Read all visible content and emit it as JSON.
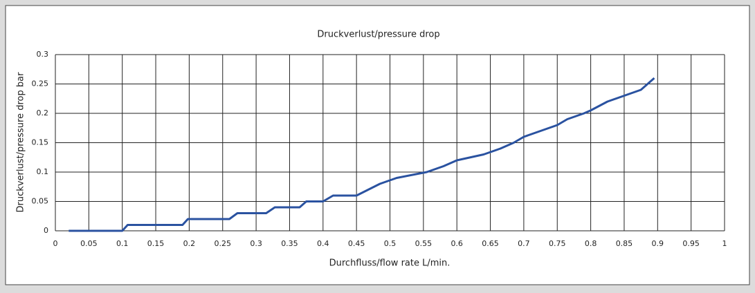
{
  "chart_data": {
    "type": "line",
    "title": "Druckverlust/pressure drop",
    "x_label": "Durchfluss/flow rate L/min.",
    "y_label": "Druckverlust/pressure drop bar",
    "x": [
      0.02,
      0.1,
      0.108,
      0.19,
      0.198,
      0.26,
      0.272,
      0.315,
      0.328,
      0.365,
      0.375,
      0.4,
      0.415,
      0.45,
      0.485,
      0.51,
      0.555,
      0.58,
      0.6,
      0.64,
      0.665,
      0.685,
      0.7,
      0.725,
      0.75,
      0.765,
      0.79,
      0.8,
      0.825,
      0.85,
      0.875,
      0.895
    ],
    "values": [
      0,
      0,
      0.01,
      0.01,
      0.02,
      0.02,
      0.03,
      0.03,
      0.04,
      0.04,
      0.05,
      0.05,
      0.06,
      0.06,
      0.08,
      0.09,
      0.1,
      0.11,
      0.12,
      0.13,
      0.14,
      0.15,
      0.16,
      0.17,
      0.18,
      0.19,
      0.2,
      0.205,
      0.22,
      0.23,
      0.24,
      0.26
    ],
    "color": "#2a52a0",
    "xlim": [
      0,
      1
    ],
    "xticks": [
      0,
      0.05,
      0.1,
      0.15,
      0.2,
      0.25,
      0.3,
      0.35,
      0.4,
      0.45,
      0.5,
      0.55,
      0.6,
      0.65,
      0.7,
      0.75,
      0.8,
      0.85,
      0.9,
      0.95,
      1
    ],
    "ylim": [
      0,
      0.3
    ],
    "yticks": [
      0,
      0.05,
      0.1,
      0.15,
      0.2,
      0.25,
      0.3
    ],
    "grid": true
  }
}
